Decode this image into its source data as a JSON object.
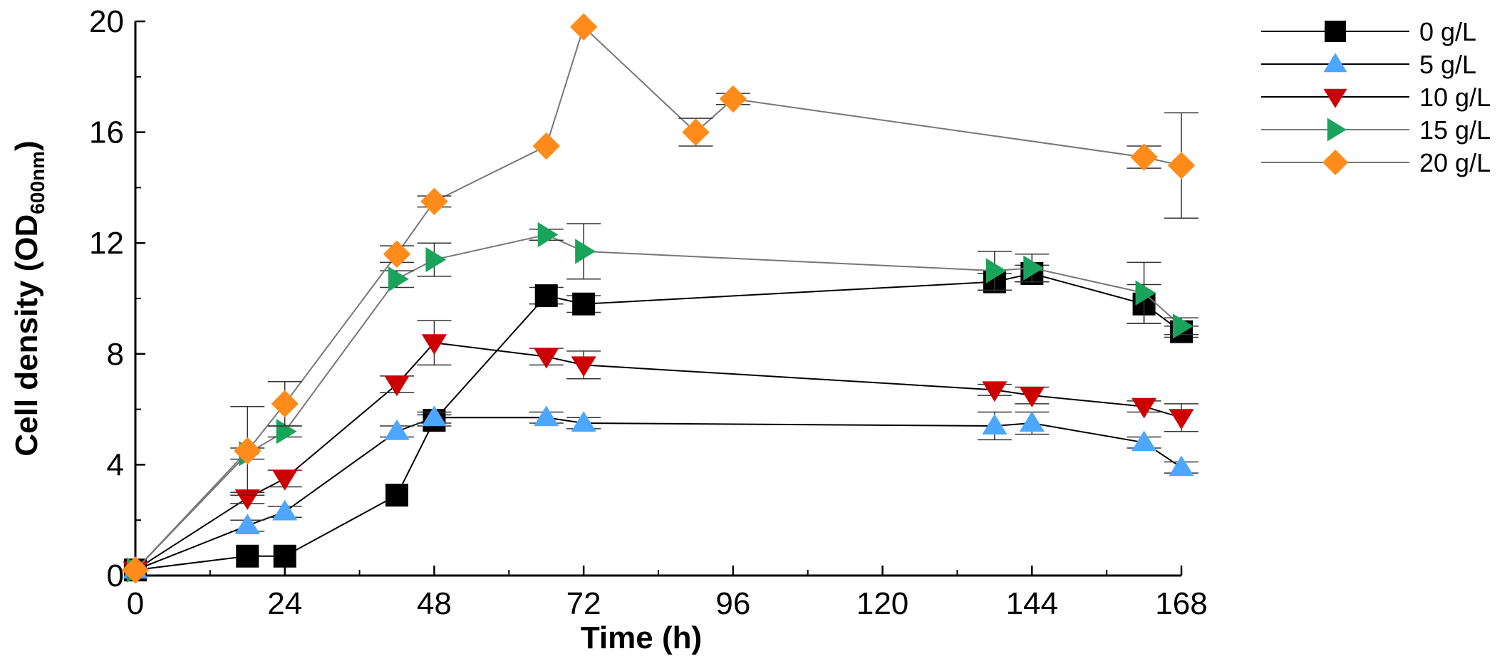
{
  "chart_data": {
    "type": "line",
    "title": "",
    "xlabel": "Time (h)",
    "ylabel": {
      "main": "Cell density (OD",
      "sub": "600nm",
      "close": ")"
    },
    "xlim": [
      0,
      168
    ],
    "ylim": [
      0,
      20
    ],
    "xticks": [
      0,
      24,
      48,
      72,
      96,
      120,
      144,
      168
    ],
    "yticks": [
      0,
      4,
      8,
      12,
      16,
      20
    ],
    "legend_position": "top-right",
    "series": [
      {
        "name": "0 g/L",
        "marker": "square",
        "color": "#000000",
        "line_color": "#000000",
        "x": [
          0,
          18,
          24,
          42,
          48,
          66,
          72,
          138,
          144,
          162,
          168
        ],
        "y": [
          0.2,
          0.7,
          0.7,
          2.9,
          5.6,
          10.1,
          9.8,
          10.6,
          10.9,
          9.8,
          8.8
        ],
        "err": [
          0.1,
          0.1,
          0.1,
          0.1,
          0.2,
          0.3,
          0.3,
          0.3,
          0.3,
          0.7,
          0.2
        ]
      },
      {
        "name": "5 g/L",
        "marker": "triangle-up",
        "color": "#4da6ff",
        "line_color": "#000000",
        "x": [
          0,
          18,
          24,
          42,
          48,
          66,
          72,
          138,
          144,
          162,
          168
        ],
        "y": [
          0.2,
          1.8,
          2.3,
          5.2,
          5.7,
          5.7,
          5.5,
          5.4,
          5.5,
          4.8,
          3.9
        ],
        "err": [
          0.1,
          0.2,
          0.2,
          0.2,
          0.2,
          0.2,
          0.2,
          0.5,
          0.4,
          0.2,
          0.2
        ]
      },
      {
        "name": "10 g/L",
        "marker": "triangle-down",
        "color": "#cc0000",
        "line_color": "#000000",
        "x": [
          0,
          18,
          24,
          42,
          48,
          66,
          72,
          138,
          144,
          162,
          168
        ],
        "y": [
          0.2,
          2.8,
          3.5,
          6.9,
          8.4,
          7.9,
          7.6,
          6.7,
          6.5,
          6.1,
          5.7
        ],
        "err": [
          0.1,
          0.2,
          0.3,
          0.3,
          0.8,
          0.3,
          0.5,
          0.2,
          0.3,
          0.2,
          0.5
        ]
      },
      {
        "name": "15 g/L",
        "marker": "triangle-right",
        "color": "#1aa35a",
        "line_color": "#777777",
        "x": [
          0,
          18,
          24,
          42,
          48,
          66,
          72,
          138,
          144,
          162,
          168
        ],
        "y": [
          0.2,
          4.4,
          5.2,
          10.7,
          11.4,
          12.3,
          11.7,
          11.0,
          11.1,
          10.2,
          9.0
        ],
        "err": [
          0.1,
          0.2,
          0.2,
          0.3,
          0.6,
          0.2,
          1.0,
          0.7,
          0.5,
          1.1,
          0.3
        ]
      },
      {
        "name": "20 g/L",
        "marker": "diamond",
        "color": "#ff8c1a",
        "line_color": "#777777",
        "x": [
          0,
          18,
          24,
          42,
          48,
          66,
          72,
          90,
          96,
          162,
          168
        ],
        "y": [
          0.2,
          4.5,
          6.2,
          11.6,
          13.5,
          15.5,
          19.8,
          16.0,
          17.2,
          15.1,
          14.8
        ],
        "err": [
          0.1,
          1.6,
          0.8,
          0.3,
          0.2,
          0.1,
          0.1,
          0.5,
          0.2,
          0.4,
          1.9
        ]
      }
    ]
  }
}
